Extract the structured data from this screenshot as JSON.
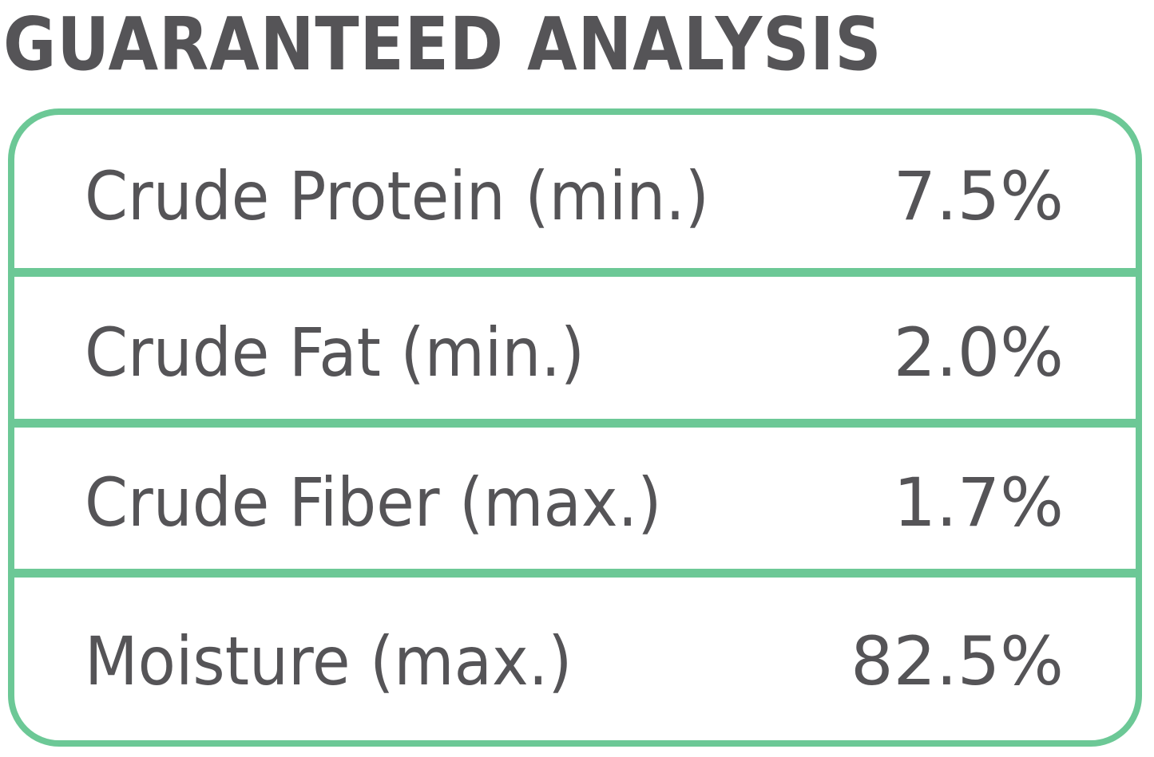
{
  "header": {
    "title": "GUARANTEED ANALYSIS"
  },
  "table": {
    "rows": [
      [
        "Crude Protein (min.)",
        "7.5%"
      ],
      [
        "Crude Fat (min.)",
        "2.0%"
      ],
      [
        "Crude Fiber (max.)",
        "1.7%"
      ],
      [
        "Moisture (max.)",
        "82.5%"
      ]
    ]
  }
}
